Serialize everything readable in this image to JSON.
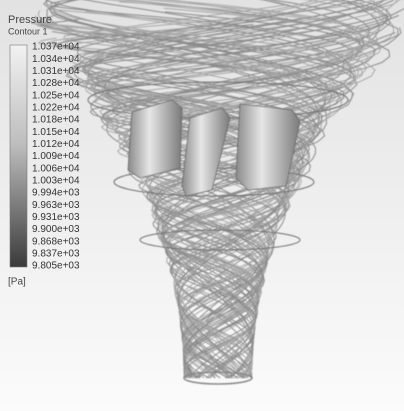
{
  "legend": {
    "title": "Pressure",
    "subtitle": "Contour 1",
    "labels": [
      "1.037e+04",
      "1.034e+04",
      "1.031e+04",
      "1.028e+04",
      "1.025e+04",
      "1.022e+04",
      "1.018e+04",
      "1.015e+04",
      "1.012e+04",
      "1.009e+04",
      "1.006e+04",
      "1.003e+04",
      "9.994e+03",
      "9.963e+03",
      "9.931e+03",
      "9.900e+03",
      "9.868e+03",
      "9.837e+03",
      "9.805e+03"
    ],
    "unit": "[Pa]"
  }
}
